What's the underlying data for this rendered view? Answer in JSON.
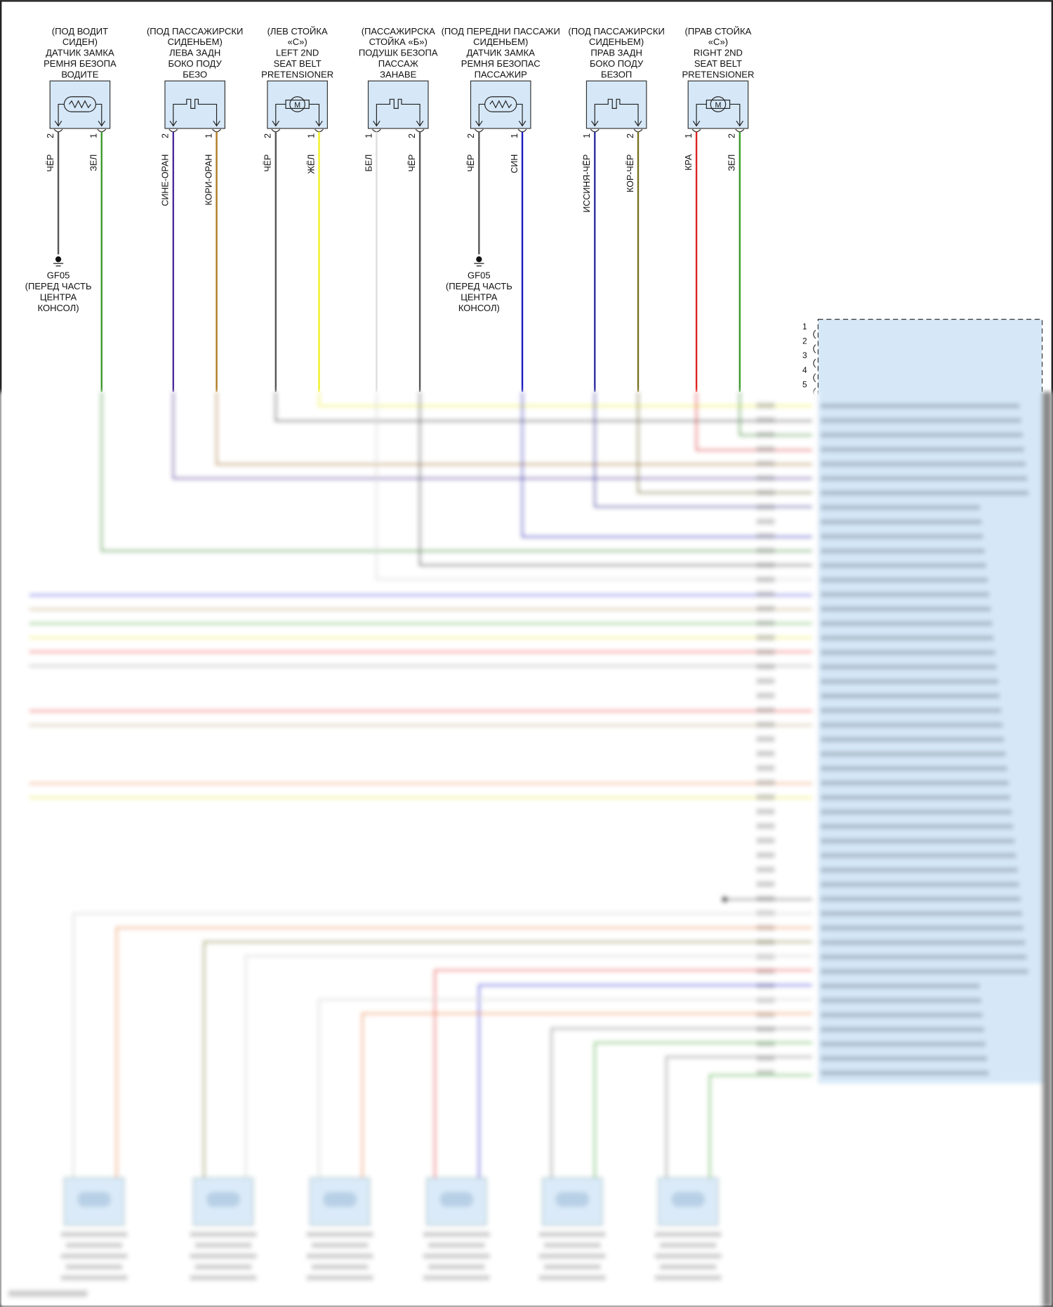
{
  "connectors": [
    {
      "lines": [
        "(ПОД ВОДИТ",
        "СИДЕН)",
        "ДАТЧИК ЗАМКА",
        "РЕМНЯ БЕЗОПА",
        "ВОДИТЕ"
      ],
      "symbol": "resistor-icon",
      "pins": [
        {
          "num": "2",
          "wire": "ЧЁР",
          "color": "#555555"
        },
        {
          "num": "1",
          "wire": "ЗЕЛ",
          "color": "#3a9a2a"
        }
      ]
    },
    {
      "lines": [
        "(ПОД ПАССАЖИРСКИ",
        "СИДЕНЬЕМ)",
        "ЛЕВА ЗАДН",
        "БОКО ПОДУ",
        "БЕЗО"
      ],
      "symbol": "switch-icon",
      "pins": [
        {
          "num": "2",
          "wire": "СИНЕ-ОРАН",
          "color": "#4b2a9a"
        },
        {
          "num": "1",
          "wire": "КОРИ-ОРАН",
          "color": "#b07a20"
        }
      ]
    },
    {
      "lines": [
        "(ЛЕВ СТОЙКА",
        "«C»)",
        "LEFT 2ND",
        "SEAT BELT",
        "PRETENSIONER"
      ],
      "symbol": "motor-icon",
      "pins": [
        {
          "num": "2",
          "wire": "ЧЁР",
          "color": "#555555"
        },
        {
          "num": "1",
          "wire": "ЖЁЛ",
          "color": "#f0f020"
        }
      ]
    },
    {
      "lines": [
        "(ПАССАЖИРСКА",
        "СТОЙКА «Б»)",
        "ПОДУШК БЕЗОПА",
        "ПАССАЖ",
        "ЗАНАВЕ"
      ],
      "symbol": "switch-icon",
      "pins": [
        {
          "num": "1",
          "wire": "БЕЛ",
          "color": "#dddddd"
        },
        {
          "num": "2",
          "wire": "ЧЁР",
          "color": "#555555"
        }
      ]
    },
    {
      "lines": [
        "(ПОД ПЕРЕДНИ ПАССАЖИ",
        "СИДЕНЬЕМ)",
        "ДАТЧИК ЗАМКА",
        "РЕМНЯ БЕЗОПАС",
        "ПАССАЖИР"
      ],
      "symbol": "resistor-icon",
      "pins": [
        {
          "num": "2",
          "wire": "ЧЁР",
          "color": "#555555"
        },
        {
          "num": "1",
          "wire": "СИН",
          "color": "#1a1ac0"
        }
      ]
    },
    {
      "lines": [
        "(ПОД ПАССАЖИРСКИ",
        "СИДЕНЬЕМ)",
        "ПРАВ ЗАДН",
        "БОКО ПОДУ",
        "БЕЗОП"
      ],
      "symbol": "switch-icon",
      "pins": [
        {
          "num": "1",
          "wire": "ИССИНЯ-ЧЁР",
          "color": "#2a2aa0"
        },
        {
          "num": "2",
          "wire": "КОР-ЧЁР",
          "color": "#7a7020"
        }
      ]
    },
    {
      "lines": [
        "(ПРАВ СТОЙКА",
        "«C»)",
        "RIGHT 2ND",
        "SEAT BELT",
        "PRETENSIONER"
      ],
      "symbol": "motor-icon",
      "pins": [
        {
          "num": "1",
          "wire": "КРА",
          "color": "#e02020"
        },
        {
          "num": "2",
          "wire": "ЗЕЛ",
          "color": "#3a9a2a"
        }
      ]
    }
  ],
  "grounds": [
    {
      "lines": [
        "GF05",
        "(ПЕРЕД ЧАСТЬ",
        "ЦЕНТРА",
        "КОНСОЛ)"
      ]
    },
    {
      "lines": [
        "GF05",
        "(ПЕРЕД ЧАСТЬ",
        "ЦЕНТРА",
        "КОНСОЛ)"
      ]
    }
  ],
  "module": {
    "pins": [
      "1",
      "2",
      "3",
      "4",
      "5"
    ],
    "fill": "#d6e8f8"
  },
  "colors": {
    "box_fill": "#d6e8f8",
    "border": "#333333"
  }
}
